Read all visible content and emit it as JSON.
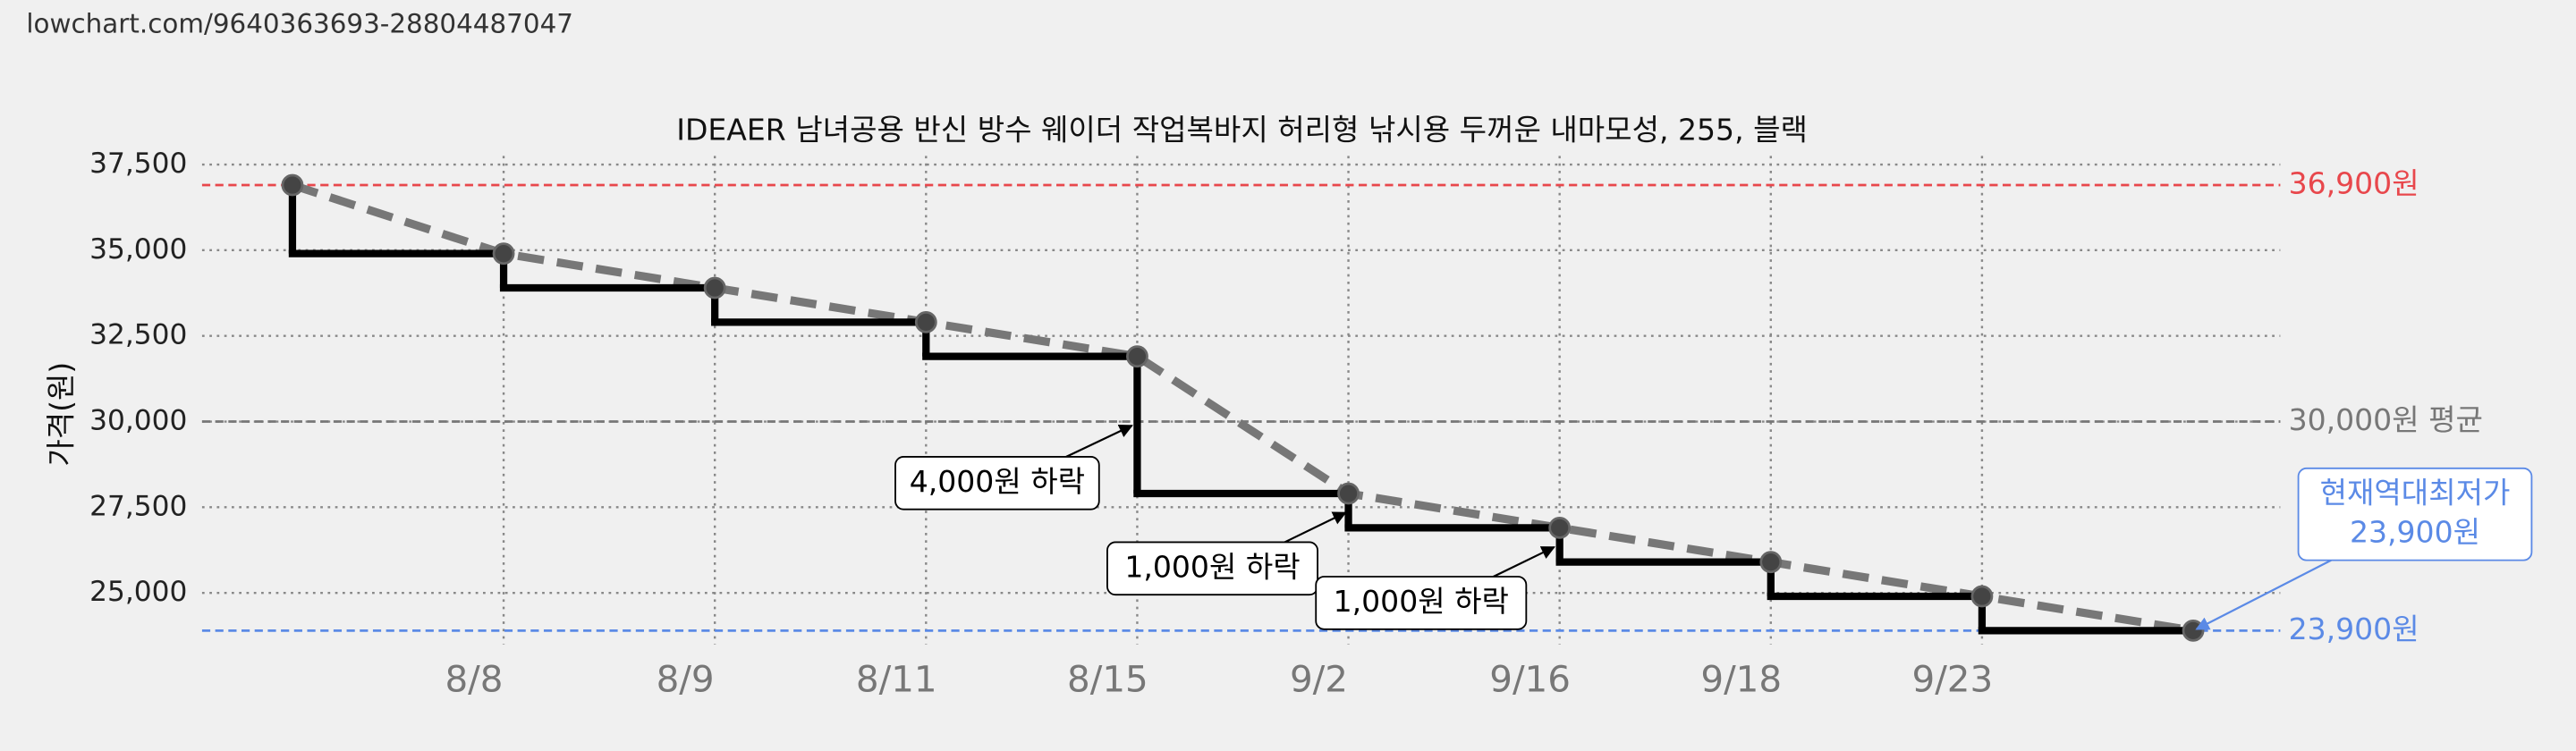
{
  "url": "lowchart.com/9640363693-28804487047",
  "chart_data": {
    "type": "step",
    "title": "IDEAER 남녀공용 반신 방수 웨이더 작업복바지 허리형 낚시용 두꺼운 내마모성, 255, 블랙",
    "y_label": "가격(원)",
    "categories": [
      null,
      "8/8",
      "8/9",
      "8/11",
      "8/15",
      "9/2",
      "9/16",
      "9/18",
      "9/23",
      null
    ],
    "values": [
      36900,
      34900,
      33900,
      32900,
      31900,
      27900,
      26900,
      25900,
      24900,
      23900
    ],
    "color": "#000000",
    "trend_color": "#777777",
    "ylim": [
      23500,
      37750
    ],
    "yticks": [
      {
        "value": 25000,
        "label": "25,000"
      },
      {
        "value": 27500,
        "label": "27,500"
      },
      {
        "value": 30000,
        "label": "30,000"
      },
      {
        "value": 32500,
        "label": "32,500"
      },
      {
        "value": 35000,
        "label": "35,000"
      },
      {
        "value": 37500,
        "label": "37,500"
      }
    ],
    "grid": true,
    "reference_lines": [
      {
        "value": 36900,
        "label": "36,900원",
        "color": "#e8474c"
      },
      {
        "value": 30000,
        "label": "30,000원 평균",
        "color": "#777777"
      },
      {
        "value": 23900,
        "label": "23,900원",
        "color": "#5b8ae6"
      }
    ],
    "annotations": [
      {
        "text": "4,000원 하락"
      },
      {
        "text": "1,000원 하락"
      },
      {
        "text": "1,000원 하락"
      },
      {
        "text": [
          "현재역대최저가",
          "23,900원"
        ]
      }
    ]
  }
}
